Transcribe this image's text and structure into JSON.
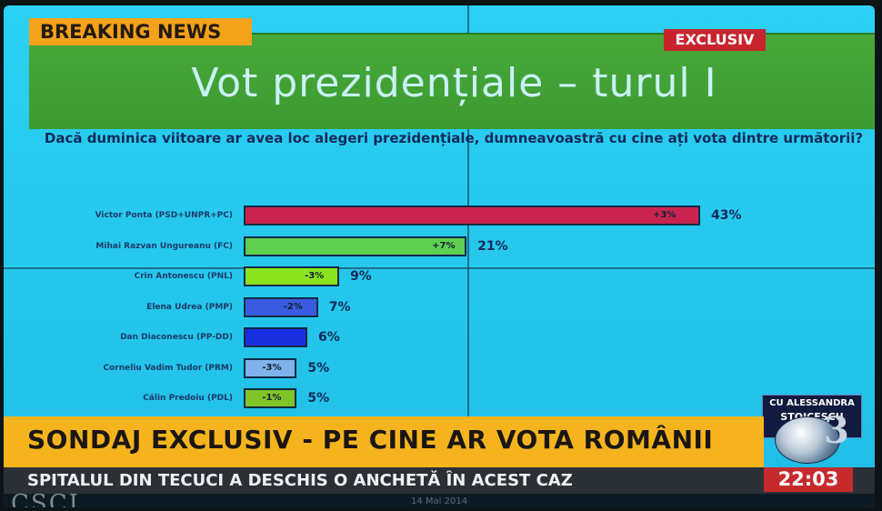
{
  "overlay": {
    "breaking": "BREAKING NEWS",
    "exclusive": "EXCLUSIV"
  },
  "chart_data": {
    "type": "bar",
    "orientation": "horizontal",
    "title": "Vot prezidențiale – turul I",
    "subtitle": "Dacă duminica viitoare ar avea loc alegeri prezidențiale, dumneavoastră cu cine ați vota dintre următorii?",
    "categories": [
      "Victor Ponta (PSD+UNPR+PC)",
      "Mihai Razvan Ungureanu (FC)",
      "Crin Antonescu (PNL)",
      "Elena Udrea (PMP)",
      "Dan Diaconescu (PP-DD)",
      "Corneliu Vadim Tudor (PRM)",
      "Călin Predoiu (PDL)"
    ],
    "values": [
      43,
      21,
      9,
      7,
      6,
      5,
      5
    ],
    "value_labels": [
      "43%",
      "21%",
      "9%",
      "7%",
      "6%",
      "5%",
      "5%"
    ],
    "changes": [
      "+3%",
      "+7%",
      "-3%",
      "-2%",
      "",
      "-3%",
      "-1%"
    ],
    "colors": [
      "#c9244f",
      "#5fcf52",
      "#8ae21e",
      "#3b5ce0",
      "#1a2fe0",
      "#7fb2ea",
      "#7fc52a"
    ],
    "xlim": [
      0,
      45
    ],
    "grid": true,
    "legend": "none"
  },
  "lower_third": {
    "headline": "SONDAJ EXCLUSIV - PE CINE AR VOTA ROMÂNII",
    "ticker": "SPITALUL DIN TECUCI A DESCHIS O ANCHETĂ ÎN ACEST CAZ",
    "clock": "22:03",
    "presenter_line1": "CU ALESSANDRA",
    "presenter_line2": "STOICESCU",
    "channel_number": "3"
  },
  "footer": {
    "brand": "CSCI",
    "date": "14 Mai 2014"
  }
}
